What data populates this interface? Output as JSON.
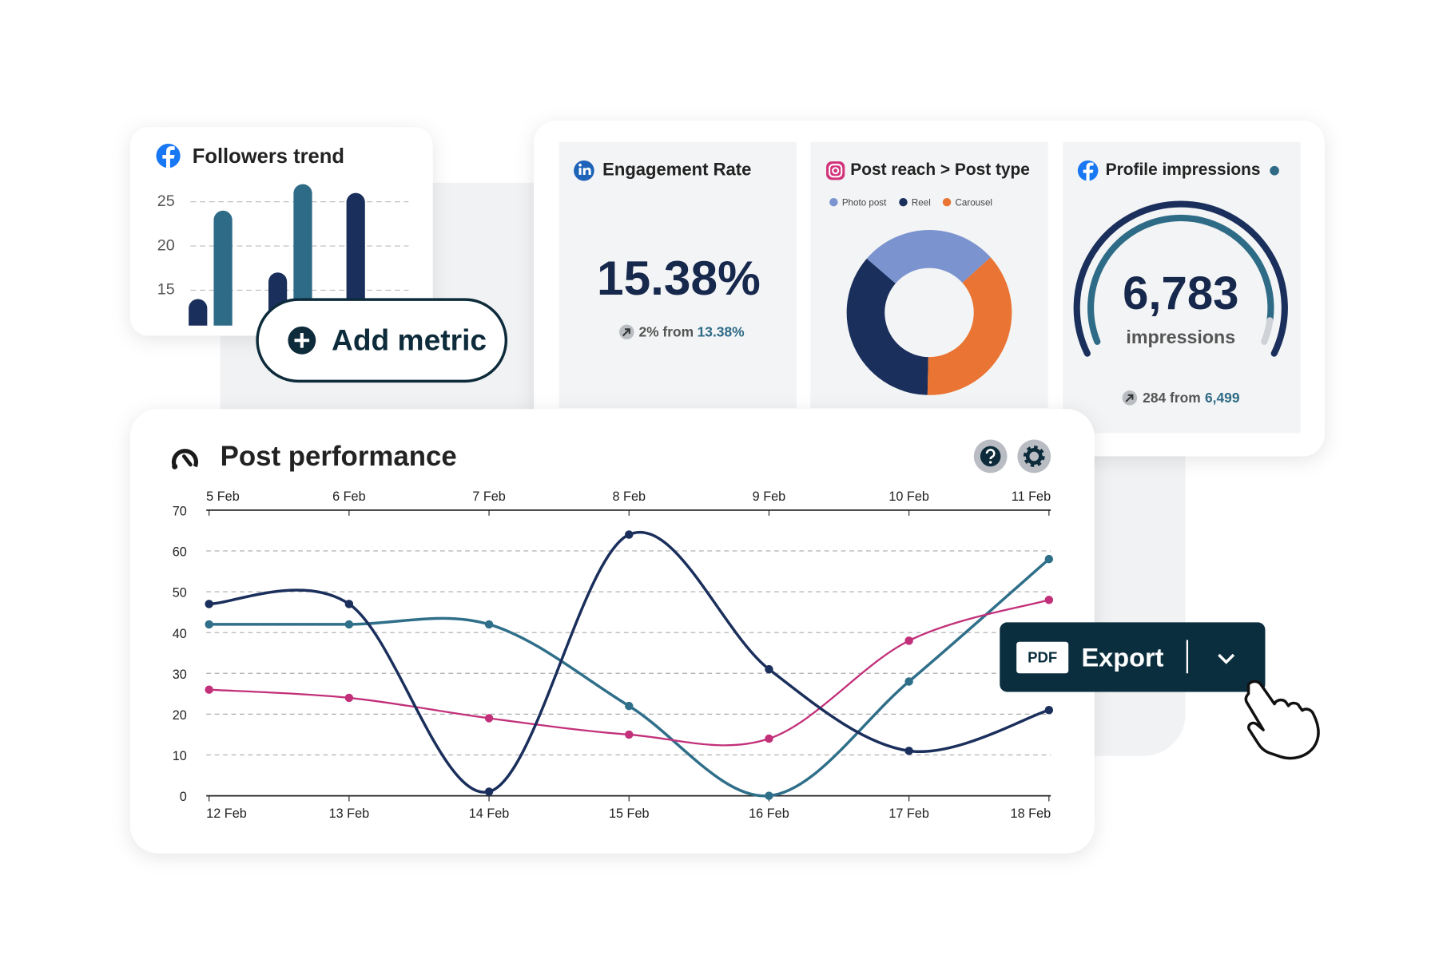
{
  "followers_trend": {
    "type": "bar",
    "title": "Followers trend",
    "values": [
      14,
      24,
      17,
      27,
      26
    ],
    "colors": [
      "#1b2f5c",
      "#2e6b87",
      "#1b2f5c",
      "#2e6b87",
      "#1b2f5c"
    ],
    "ylim": [
      11,
      28
    ],
    "yticks": [
      15,
      20,
      25
    ],
    "grid": true
  },
  "add_metric": {
    "label": "Add metric"
  },
  "engagement_rate": {
    "title": "Engagement Rate",
    "value": "15.38%",
    "change": "2% from",
    "previous": "13.38%"
  },
  "post_reach": {
    "type": "pie",
    "title": "Post reach > Post type",
    "categories": [
      "Photo post",
      "Reel",
      "Carousel"
    ],
    "values": [
      27,
      36,
      37
    ],
    "colors": [
      "#7b93cf",
      "#1b2f5c",
      "#e97433"
    ]
  },
  "profile_impressions": {
    "title": "Profile impressions",
    "value": "6,783",
    "unit": "impressions",
    "change": "284 from",
    "previous": "6,499"
  },
  "post_performance": {
    "type": "line",
    "title": "Post performance",
    "top_categories": [
      "5 Feb",
      "6 Feb",
      "7 Feb",
      "8 Feb",
      "9 Feb",
      "10 Feb",
      "11 Feb"
    ],
    "categories": [
      "12 Feb",
      "13 Feb",
      "14 Feb",
      "15 Feb",
      "16 Feb",
      "17 Feb",
      "18 Feb"
    ],
    "series": [
      {
        "color": "#2f6f8a",
        "values": [
          42,
          42,
          42,
          22,
          0,
          28,
          58
        ]
      },
      {
        "color": "#c2307a",
        "values": [
          26,
          24,
          19,
          15,
          14,
          38,
          48
        ]
      },
      {
        "color": "#1b2f5c",
        "values": [
          47,
          47,
          1,
          64,
          31,
          11,
          21
        ]
      }
    ],
    "ylim": [
      0,
      70
    ],
    "yticks": [
      0,
      10,
      20,
      30,
      40,
      50,
      60,
      70
    ],
    "grid": true
  },
  "export": {
    "format": "PDF",
    "label": "Export"
  }
}
